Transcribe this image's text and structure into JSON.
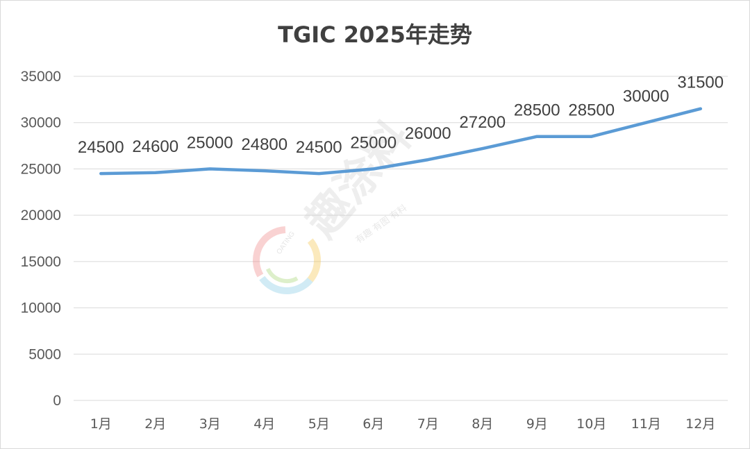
{
  "chart_data": {
    "type": "line",
    "title": "TGIC 2025年走势",
    "categories": [
      "1月",
      "2月",
      "3月",
      "4月",
      "5月",
      "6月",
      "7月",
      "8月",
      "9月",
      "10月",
      "11月",
      "12月"
    ],
    "series": [
      {
        "values": [
          24500,
          24600,
          25000,
          24800,
          24500,
          25000,
          26000,
          27200,
          28500,
          28500,
          30000,
          31500
        ]
      }
    ],
    "data_labels": [
      "24500",
      "24600",
      "25000",
      "24800",
      "24500",
      "25000",
      "26000",
      "27200",
      "28500",
      "28500",
      "30000",
      "31500"
    ],
    "y_ticks": [
      "0",
      "5000",
      "10000",
      "15000",
      "20000",
      "25000",
      "30000",
      "35000"
    ],
    "ylim": [
      0,
      35000
    ],
    "grid": "horizontal",
    "legend": "none",
    "colors": {
      "line": "#5b9bd5",
      "grid": "#d9d9d9",
      "text": "#595959"
    }
  },
  "watermark": {
    "text": "趣涂料",
    "slogan": "有趣 有图 有料",
    "logo_text": "OATING"
  }
}
